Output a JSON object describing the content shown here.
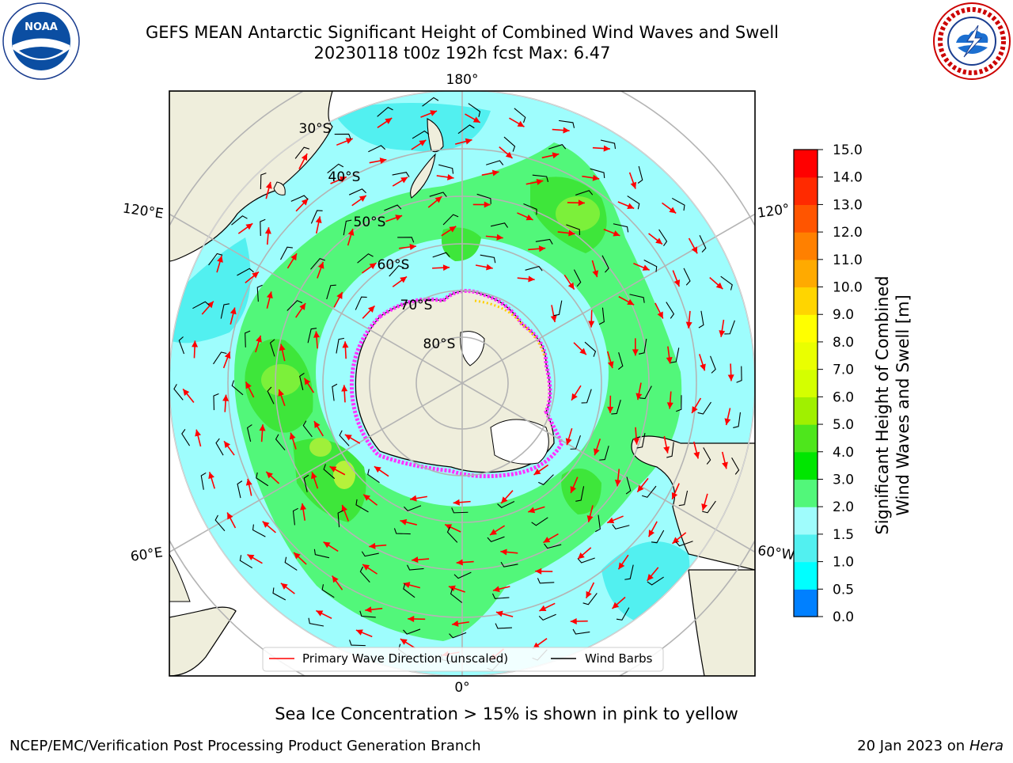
{
  "title": {
    "line1": "GEFS MEAN Antarctic Significant Height of Combined Wind Waves and Swell",
    "line2": "20230118 t00z 192h fcst   Max: 6.47"
  },
  "map": {
    "lon_labels": {
      "top": "180°",
      "bottom": "0°",
      "left_upper": "120°E",
      "left_lower": "60°E",
      "right_upper": "120°",
      "right_lower": "60°W"
    },
    "lat_labels": [
      "30°S",
      "40°S",
      "50°S",
      "60°S",
      "70°S",
      "80°S"
    ],
    "colors": {
      "land": "#efeedc",
      "ocean_light": "#9efdfd",
      "ocean_mid": "#52f0f0",
      "wave_green_light": "#4ff07a",
      "wave_green": "#3ee63a",
      "wave_yellowgreen": "#b6f23b",
      "ice_pink": "#ff33ff",
      "wave_arrow": "#ff0000",
      "wind_barb": "#000000"
    }
  },
  "legend": {
    "wave_label": "Primary Wave Direction (unscaled)",
    "barb_label": "Wind Barbs"
  },
  "colorbar": {
    "label_line1": "Significant Height of Combined",
    "label_line2": "Wind Waves and Swell [m]",
    "ticks": [
      "15.0",
      "14.0",
      "13.0",
      "12.0",
      "11.0",
      "10.0",
      "9.0",
      "8.0",
      "7.0",
      "6.0",
      "5.0",
      "4.0",
      "3.0",
      "2.0",
      "1.5",
      "1.0",
      "0.5",
      "0.0"
    ],
    "colors": [
      "#ff0000",
      "#ff2a00",
      "#ff5500",
      "#ff8000",
      "#ffaa00",
      "#ffd500",
      "#ffff00",
      "#eaff00",
      "#d4ff00",
      "#a0f000",
      "#4ee61c",
      "#00e600",
      "#52f77a",
      "#9ffcfc",
      "#52f0f0",
      "#00ffff",
      "#0080ff",
      "#0000ff"
    ]
  },
  "logos": {
    "noaa": "NOAA",
    "nws_ring": "NATIONAL WEATHER SERVICE"
  },
  "note": "Sea Ice Concentration > 15% is shown in pink to yellow",
  "footer": {
    "left": "NCEP/EMC/Verification Post Processing Product Generation Branch",
    "right_date": "20 Jan 2023 on ",
    "right_machine": "Hera"
  }
}
